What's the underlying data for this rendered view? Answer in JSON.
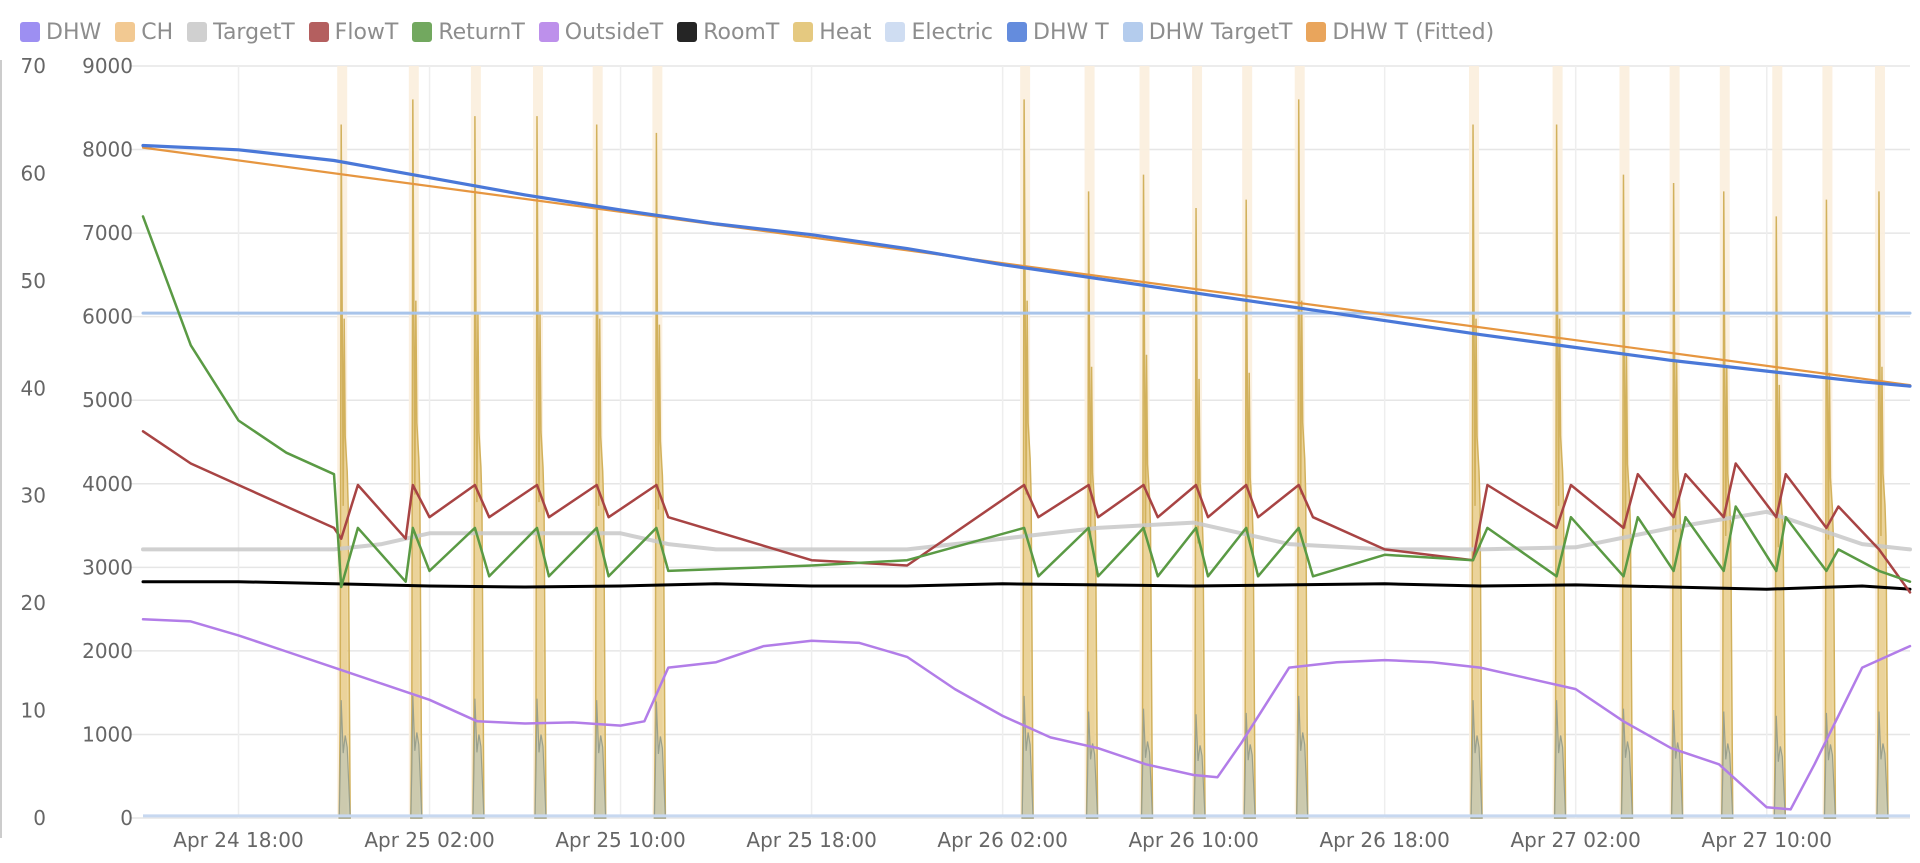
{
  "colors": {
    "DHW": "#8d7cf0",
    "CH": "#f0c080",
    "TargetT": "#c8c8c8",
    "FlowT": "#a84444",
    "ReturnT": "#5a9a44",
    "OutsideT": "#b27de8",
    "RoomT": "#000000",
    "Heat": "#e1c06a",
    "Electric": "#c7d8f0",
    "DHW T": "#4a78d8",
    "DHW TargetT": "#a8c4ea",
    "DHW T (Fitted)": "#e69640"
  },
  "legend": [
    {
      "label": "DHW",
      "key": "DHW"
    },
    {
      "label": "CH",
      "key": "CH"
    },
    {
      "label": "TargetT",
      "key": "TargetT"
    },
    {
      "label": "FlowT",
      "key": "FlowT"
    },
    {
      "label": "ReturnT",
      "key": "ReturnT"
    },
    {
      "label": "OutsideT",
      "key": "OutsideT"
    },
    {
      "label": "RoomT",
      "key": "RoomT"
    },
    {
      "label": "Heat",
      "key": "Heat"
    },
    {
      "label": "Electric",
      "key": "Electric"
    },
    {
      "label": "DHW T",
      "key": "DHW T"
    },
    {
      "label": "DHW TargetT",
      "key": "DHW TargetT"
    },
    {
      "label": "DHW T (Fitted)",
      "key": "DHW T (Fitted)"
    }
  ],
  "chart_data": {
    "type": "line",
    "title": "",
    "x_start": "Apr 24 14:00",
    "x_end": "Apr 27 16:00",
    "x_tick_labels": [
      "Apr 24 18:00",
      "Apr 25 02:00",
      "Apr 25 10:00",
      "Apr 25 18:00",
      "Apr 26 02:00",
      "Apr 26 10:00",
      "Apr 26 18:00",
      "Apr 27 02:00",
      "Apr 27 10:00"
    ],
    "x_tick_hours": [
      4,
      12,
      20,
      28,
      36,
      44,
      52,
      60,
      68
    ],
    "x_range_hours": [
      0,
      74
    ],
    "y_left": {
      "ticks": [
        0,
        10,
        20,
        30,
        40,
        50,
        60,
        70
      ],
      "ylim": [
        0,
        70
      ]
    },
    "y_right": {
      "ticks": [
        0,
        1000,
        2000,
        3000,
        4000,
        5000,
        6000,
        7000,
        8000,
        9000
      ],
      "ylim": [
        0,
        9000
      ]
    },
    "grid": true,
    "legend_position": "top-left",
    "dhw_cycles_hours": [
      8.3,
      11.3,
      13.9,
      16.5,
      19.0,
      21.5,
      36.9,
      39.6,
      41.9,
      44.1,
      46.2,
      48.4,
      55.7,
      59.2,
      62.0,
      64.1,
      66.2,
      68.4,
      70.5,
      72.7
    ],
    "heat_cycles_peak_w": [
      8300,
      8600,
      8400,
      8400,
      8300,
      8200,
      8600,
      7500,
      7700,
      7300,
      7400,
      8600,
      8300,
      8300,
      7700,
      7600,
      7500,
      7200,
      7400,
      7500
    ],
    "series": [
      {
        "name": "DHW T",
        "axis": "left",
        "x": [
          0,
          4,
          8,
          12,
          16,
          20,
          24,
          28,
          32,
          36,
          40,
          44,
          48,
          52,
          56,
          60,
          64,
          68,
          72,
          74
        ],
        "values": [
          62.6,
          62.2,
          61.2,
          59.6,
          58.0,
          56.6,
          55.3,
          54.3,
          53.0,
          51.5,
          50.2,
          48.9,
          47.6,
          46.3,
          45.0,
          43.8,
          42.6,
          41.6,
          40.6,
          40.2
        ]
      },
      {
        "name": "DHW T (Fitted)",
        "axis": "left",
        "x": [
          0,
          74
        ],
        "values": [
          62.4,
          40.3
        ]
      },
      {
        "name": "DHW TargetT",
        "axis": "left",
        "x": [
          0,
          74
        ],
        "values": [
          47.0,
          47.0
        ]
      },
      {
        "name": "FlowT",
        "axis": "left",
        "x": [
          0,
          2,
          4,
          6,
          8,
          8.3,
          9,
          11,
          11.3,
          12,
          13.9,
          14.5,
          16.5,
          17,
          19,
          19.5,
          21.5,
          22,
          28,
          32,
          36.9,
          37.5,
          39.6,
          40,
          41.9,
          42.5,
          44.1,
          44.6,
          46.2,
          46.7,
          48.4,
          49,
          52,
          55.7,
          56.3,
          59.2,
          59.8,
          62.0,
          62.6,
          64.1,
          64.6,
          66.2,
          66.7,
          68.4,
          68.8,
          70.5,
          71,
          72.7,
          74
        ],
        "values": [
          36,
          33,
          31,
          29,
          27,
          26,
          31,
          26,
          31,
          28,
          31,
          28,
          31,
          28,
          31,
          28,
          31,
          28,
          24,
          23.5,
          31,
          28,
          31,
          28,
          31,
          28,
          31,
          28,
          31,
          28,
          31,
          28,
          25,
          24,
          31,
          27,
          31,
          27,
          32,
          28,
          32,
          28,
          33,
          28,
          32,
          27,
          29,
          25,
          21
        ]
      },
      {
        "name": "ReturnT",
        "axis": "left",
        "x": [
          0,
          2,
          4,
          6,
          8,
          8.3,
          9,
          11,
          11.3,
          12,
          13.9,
          14.5,
          16.5,
          17,
          19,
          19.5,
          21.5,
          22,
          28,
          32,
          36.9,
          37.5,
          39.6,
          40,
          41.9,
          42.5,
          44.1,
          44.6,
          46.2,
          46.7,
          48.4,
          49,
          52,
          55.7,
          56.3,
          59.2,
          59.8,
          62.0,
          62.6,
          64.1,
          64.6,
          66.2,
          66.7,
          68.4,
          68.8,
          70.5,
          71,
          72.7,
          74
        ],
        "values": [
          56,
          44,
          37,
          34,
          32,
          21.5,
          27,
          22,
          27,
          23,
          27,
          22.5,
          27,
          22.5,
          27,
          22.5,
          27,
          23,
          23.5,
          24,
          27,
          22.5,
          27,
          22.5,
          27,
          22.5,
          27,
          22.5,
          27,
          22.5,
          27,
          22.5,
          24.5,
          24,
          27,
          22.5,
          28,
          22.5,
          28,
          23,
          28,
          23,
          29,
          23,
          28,
          23,
          25,
          23,
          22
        ]
      },
      {
        "name": "TargetT",
        "axis": "left",
        "x": [
          0,
          8,
          10,
          12,
          16,
          20,
          22,
          24,
          28,
          32,
          36,
          40,
          44,
          46,
          48,
          52,
          56,
          60,
          64,
          68,
          70,
          72,
          74
        ],
        "values": [
          25,
          25,
          25.5,
          26.5,
          26.5,
          26.5,
          25.5,
          25,
          25,
          25,
          26,
          27,
          27.5,
          26.5,
          25.5,
          25,
          25,
          25.2,
          27,
          28.5,
          27,
          25.5,
          25
        ]
      },
      {
        "name": "RoomT",
        "axis": "left",
        "x": [
          0,
          4,
          8,
          12,
          16,
          20,
          24,
          28,
          32,
          36,
          40,
          44,
          48,
          52,
          56,
          60,
          64,
          68,
          72,
          74
        ],
        "values": [
          22,
          22,
          21.8,
          21.6,
          21.5,
          21.6,
          21.8,
          21.6,
          21.6,
          21.8,
          21.7,
          21.6,
          21.7,
          21.8,
          21.6,
          21.7,
          21.5,
          21.3,
          21.6,
          21.3
        ]
      },
      {
        "name": "OutsideT",
        "axis": "left",
        "x": [
          0,
          2,
          4,
          6,
          8,
          10,
          12,
          14,
          16,
          18,
          20,
          21,
          22,
          24,
          26,
          28,
          30,
          32,
          34,
          36,
          38,
          40,
          42,
          44,
          45,
          46,
          48,
          50,
          52,
          54,
          56,
          58,
          60,
          62,
          64,
          66,
          67,
          68,
          69,
          70,
          72,
          74
        ],
        "values": [
          18.5,
          18.3,
          17,
          15.5,
          14,
          12.5,
          11,
          9,
          8.8,
          8.9,
          8.6,
          9,
          14,
          14.5,
          16,
          16.5,
          16.3,
          15,
          12,
          9.5,
          7.5,
          6.5,
          5,
          4,
          3.8,
          7,
          14,
          14.5,
          14.7,
          14.5,
          14,
          13,
          12,
          9,
          6.5,
          5,
          3,
          1,
          0.8,
          5,
          14,
          16
        ]
      },
      {
        "name": "Heat",
        "axis": "right",
        "x": [],
        "values": []
      },
      {
        "name": "Electric",
        "axis": "right",
        "x": [],
        "values": []
      }
    ]
  }
}
